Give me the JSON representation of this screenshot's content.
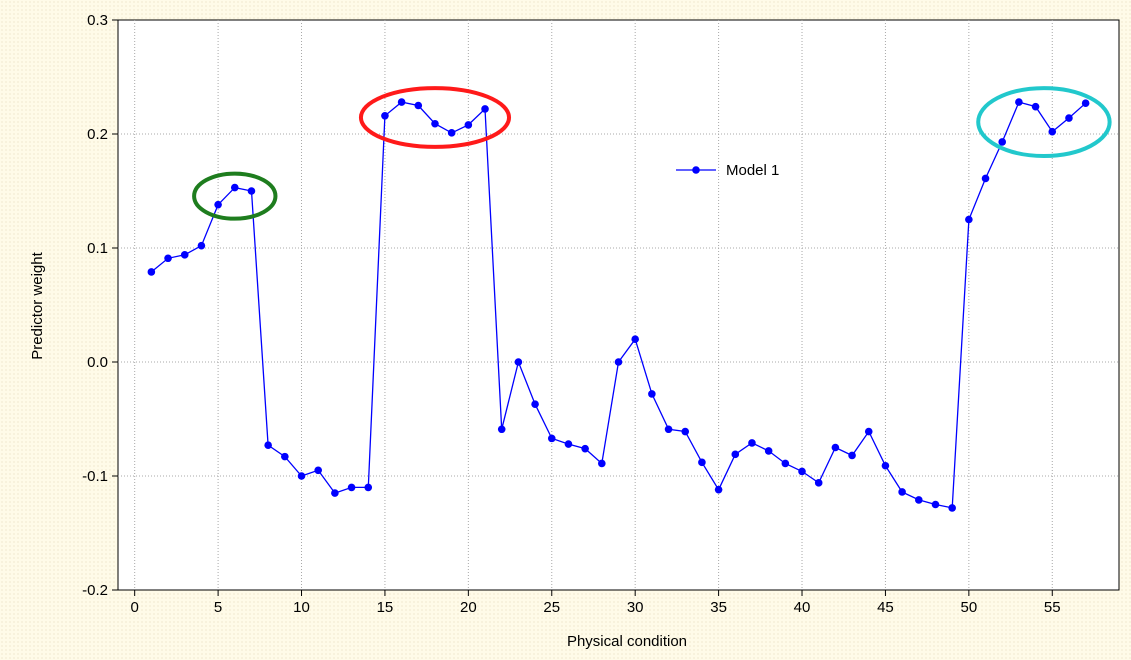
{
  "chart_data": {
    "type": "line",
    "title": "",
    "xlabel": "Physical condition",
    "ylabel": "Predictor weight",
    "xlim": [
      -1,
      59
    ],
    "ylim": [
      -0.2,
      0.3
    ],
    "xticks": [
      0,
      5,
      10,
      15,
      20,
      25,
      30,
      35,
      40,
      45,
      50,
      55
    ],
    "yticks": [
      -0.2,
      -0.1,
      0.0,
      0.1,
      0.2,
      0.3
    ],
    "ytick_labels": [
      "-0.2",
      "-0.1",
      "0.0",
      "0.1",
      "0.2",
      "0.3"
    ],
    "grid": true,
    "legend_position": "upper-center-right",
    "series": [
      {
        "name": "Model 1",
        "color": "#0000ff",
        "x": [
          1,
          2,
          3,
          4,
          5,
          6,
          7,
          8,
          9,
          10,
          11,
          12,
          13,
          14,
          15,
          16,
          17,
          18,
          19,
          20,
          21,
          22,
          23,
          24,
          25,
          26,
          27,
          28,
          29,
          30,
          31,
          32,
          33,
          34,
          35,
          36,
          37,
          38,
          39,
          40,
          41,
          42,
          43,
          44,
          45,
          46,
          47,
          48,
          49,
          50,
          51,
          52,
          53,
          54,
          55,
          56,
          57
        ],
        "y": [
          0.079,
          0.091,
          0.094,
          0.102,
          0.138,
          0.153,
          0.15,
          -0.073,
          -0.083,
          -0.1,
          -0.095,
          -0.115,
          -0.11,
          -0.11,
          0.216,
          0.228,
          0.225,
          0.209,
          0.201,
          0.208,
          0.222,
          -0.059,
          0.0,
          -0.037,
          -0.067,
          -0.072,
          -0.076,
          -0.089,
          0.0,
          0.02,
          -0.028,
          -0.059,
          -0.061,
          -0.088,
          -0.112,
          -0.081,
          -0.071,
          -0.078,
          -0.089,
          -0.096,
          -0.106,
          -0.075,
          -0.082,
          -0.061,
          -0.091,
          -0.114,
          -0.121,
          -0.125,
          -0.128,
          0.125,
          0.161,
          0.193,
          0.228,
          0.224,
          0.202,
          0.214,
          0.227
        ]
      }
    ],
    "annotations": [
      {
        "shape": "ellipse",
        "color": "#1e7d1e",
        "around_x": [
          5,
          7
        ]
      },
      {
        "shape": "ellipse",
        "color": "#ff1a1a",
        "around_x": [
          15,
          21
        ]
      },
      {
        "shape": "ellipse",
        "color": "#22c8cc",
        "around_x": [
          52,
          57
        ]
      }
    ]
  }
}
